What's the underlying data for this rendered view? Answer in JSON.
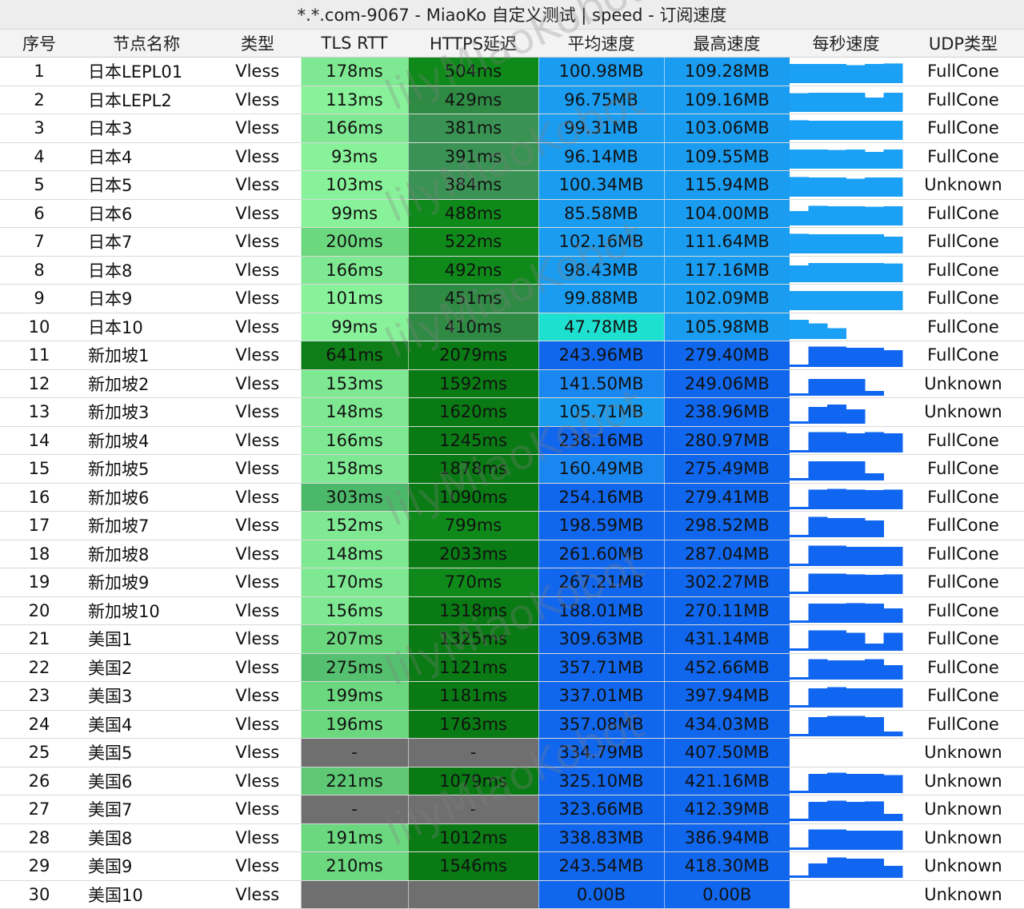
{
  "title": "*.*.com-9067 - MiaoKo 自定义测试 | speed - 订阅速度",
  "watermark_text": "lilyMiaoKobot",
  "headers": [
    "序号",
    "节点名称",
    "类型",
    "TLS RTT",
    "HTTPS延迟",
    "平均速度",
    "最高速度",
    "每秒速度",
    "UDP类型"
  ],
  "rows": [
    {
      "id": "1",
      "name": "日本LEPL01",
      "type": "Vless",
      "rtt": "178ms",
      "https": "504ms",
      "avg": "100.98MB",
      "max": "109.28MB",
      "udp": "FullCone",
      "rtt_color": "#7ee892",
      "https_color": "#0f8a1a",
      "avg_color": "#1a9cf0",
      "max_color": "#1a9cf0",
      "spark_color": "#1aa0f4",
      "spark": [
        0.8,
        0.8,
        0.8,
        0.75,
        0.8,
        0.82
      ]
    },
    {
      "id": "2",
      "name": "日本LEPL2",
      "type": "Vless",
      "rtt": "113ms",
      "https": "429ms",
      "avg": "96.75MB",
      "max": "109.16MB",
      "udp": "FullCone",
      "rtt_color": "#88f29a",
      "https_color": "#2f8a44",
      "avg_color": "#1a9cf0",
      "max_color": "#1a9cf0",
      "spark_color": "#1aa0f4",
      "spark": [
        0.78,
        0.8,
        0.8,
        0.8,
        0.6,
        0.8
      ]
    },
    {
      "id": "3",
      "name": "日本3",
      "type": "Vless",
      "rtt": "166ms",
      "https": "381ms",
      "avg": "99.31MB",
      "max": "103.06MB",
      "udp": "FullCone",
      "rtt_color": "#7ee892",
      "https_color": "#3a9354",
      "avg_color": "#1a9cf0",
      "max_color": "#1a9cf0",
      "spark_color": "#1aa0f4",
      "spark": [
        0.82,
        0.8,
        0.8,
        0.8,
        0.8,
        0.8
      ]
    },
    {
      "id": "4",
      "name": "日本4",
      "type": "Vless",
      "rtt": "93ms",
      "https": "391ms",
      "avg": "96.14MB",
      "max": "109.55MB",
      "udp": "FullCone",
      "rtt_color": "#88f29a",
      "https_color": "#3a9354",
      "avg_color": "#1a9cf0",
      "max_color": "#1a9cf0",
      "spark_color": "#1aa0f4",
      "spark": [
        0.8,
        0.8,
        0.78,
        0.8,
        0.7,
        0.8
      ]
    },
    {
      "id": "5",
      "name": "日本5",
      "type": "Vless",
      "rtt": "103ms",
      "https": "384ms",
      "avg": "100.34MB",
      "max": "115.94MB",
      "udp": "Unknown",
      "rtt_color": "#88f29a",
      "https_color": "#3a9354",
      "avg_color": "#1a9cf0",
      "max_color": "#1a9cf0",
      "spark_color": "#1aa0f4",
      "spark": [
        0.82,
        0.8,
        0.8,
        0.75,
        0.8,
        0.8
      ]
    },
    {
      "id": "6",
      "name": "日本6",
      "type": "Vless",
      "rtt": "99ms",
      "https": "488ms",
      "avg": "85.58MB",
      "max": "104.00MB",
      "udp": "FullCone",
      "rtt_color": "#88f29a",
      "https_color": "#0f8a1a",
      "avg_color": "#1a9cf0",
      "max_color": "#1a9cf0",
      "spark_color": "#1aa0f4",
      "spark": [
        0.6,
        0.82,
        0.8,
        0.8,
        0.78,
        0.8
      ]
    },
    {
      "id": "7",
      "name": "日本7",
      "type": "Vless",
      "rtt": "200ms",
      "https": "522ms",
      "avg": "102.16MB",
      "max": "111.64MB",
      "udp": "FullCone",
      "rtt_color": "#6bd77f",
      "https_color": "#0f8a1a",
      "avg_color": "#1a9cf0",
      "max_color": "#1a9cf0",
      "spark_color": "#1aa0f4",
      "spark": [
        0.82,
        0.8,
        0.8,
        0.8,
        0.8,
        0.7
      ]
    },
    {
      "id": "8",
      "name": "日本8",
      "type": "Vless",
      "rtt": "166ms",
      "https": "492ms",
      "avg": "98.43MB",
      "max": "117.16MB",
      "udp": "FullCone",
      "rtt_color": "#7ee892",
      "https_color": "#0f8a1a",
      "avg_color": "#1a9cf0",
      "max_color": "#1a9cf0",
      "spark_color": "#1aa0f4",
      "spark": [
        0.7,
        0.8,
        0.8,
        0.8,
        0.8,
        0.78
      ]
    },
    {
      "id": "9",
      "name": "日本9",
      "type": "Vless",
      "rtt": "101ms",
      "https": "451ms",
      "avg": "99.88MB",
      "max": "102.09MB",
      "udp": "FullCone",
      "rtt_color": "#88f29a",
      "https_color": "#2f8a44",
      "avg_color": "#1a9cf0",
      "max_color": "#1a9cf0",
      "spark_color": "#1aa0f4",
      "spark": [
        0.8,
        0.8,
        0.8,
        0.8,
        0.8,
        0.8
      ]
    },
    {
      "id": "10",
      "name": "日本10",
      "type": "Vless",
      "rtt": "99ms",
      "https": "410ms",
      "avg": "47.78MB",
      "max": "105.98MB",
      "udp": "FullCone",
      "rtt_color": "#88f29a",
      "https_color": "#2f8a44",
      "avg_color": "#1ee0d0",
      "max_color": "#1a9cf0",
      "spark_color": "#1aa0f4",
      "spark": [
        0.8,
        0.65,
        0.45,
        0,
        0,
        0
      ]
    },
    {
      "id": "11",
      "name": "新加坡1",
      "type": "Vless",
      "rtt": "641ms",
      "https": "2079ms",
      "avg": "243.96MB",
      "max": "279.40MB",
      "udp": "FullCone",
      "rtt_color": "#0f7d18",
      "https_color": "#0a7a14",
      "avg_color": "#1066ec",
      "max_color": "#1066ec",
      "spark_color": "#1066f0",
      "spark": [
        0.1,
        0.85,
        0.85,
        0.8,
        0.8,
        0.7
      ]
    },
    {
      "id": "12",
      "name": "新加坡2",
      "type": "Vless",
      "rtt": "153ms",
      "https": "1592ms",
      "avg": "141.50MB",
      "max": "249.06MB",
      "udp": "Unknown",
      "rtt_color": "#7ee892",
      "https_color": "#0a7a14",
      "avg_color": "#1a86f0",
      "max_color": "#1066ec",
      "spark_color": "#1066f0",
      "spark": [
        0.1,
        0.7,
        0.7,
        0.7,
        0.2,
        0
      ]
    },
    {
      "id": "13",
      "name": "新加坡3",
      "type": "Vless",
      "rtt": "148ms",
      "https": "1620ms",
      "avg": "105.71MB",
      "max": "238.96MB",
      "udp": "Unknown",
      "rtt_color": "#7ee892",
      "https_color": "#0a7a14",
      "avg_color": "#1a9cf0",
      "max_color": "#1066ec",
      "spark_color": "#1066f0",
      "spark": [
        0.1,
        0.7,
        0.8,
        0.6,
        0,
        0
      ]
    },
    {
      "id": "14",
      "name": "新加坡4",
      "type": "Vless",
      "rtt": "166ms",
      "https": "1245ms",
      "avg": "238.16MB",
      "max": "280.97MB",
      "udp": "FullCone",
      "rtt_color": "#7ee892",
      "https_color": "#0a7a14",
      "avg_color": "#1066ec",
      "max_color": "#1066ec",
      "spark_color": "#1066f0",
      "spark": [
        0.1,
        0.85,
        0.85,
        0.8,
        0.85,
        0.8
      ]
    },
    {
      "id": "15",
      "name": "新加坡5",
      "type": "Vless",
      "rtt": "158ms",
      "https": "1878ms",
      "avg": "160.49MB",
      "max": "275.49MB",
      "udp": "FullCone",
      "rtt_color": "#7ee892",
      "https_color": "#0a7a14",
      "avg_color": "#1a86f0",
      "max_color": "#1066ec",
      "spark_color": "#1066f0",
      "spark": [
        0.1,
        0.8,
        0.8,
        0.8,
        0.3,
        0
      ]
    },
    {
      "id": "16",
      "name": "新加坡6",
      "type": "Vless",
      "rtt": "303ms",
      "https": "1090ms",
      "avg": "254.16MB",
      "max": "279.41MB",
      "udp": "FullCone",
      "rtt_color": "#4cb869",
      "https_color": "#0a7a14",
      "avg_color": "#1066ec",
      "max_color": "#1066ec",
      "spark_color": "#1066f0",
      "spark": [
        0.1,
        0.82,
        0.85,
        0.82,
        0.8,
        0.82
      ]
    },
    {
      "id": "17",
      "name": "新加坡7",
      "type": "Vless",
      "rtt": "152ms",
      "https": "799ms",
      "avg": "198.59MB",
      "max": "298.52MB",
      "udp": "FullCone",
      "rtt_color": "#7ee892",
      "https_color": "#0f8a1a",
      "avg_color": "#1066ec",
      "max_color": "#1066ec",
      "spark_color": "#1066f0",
      "spark": [
        0.1,
        0.85,
        0.8,
        0.8,
        0.7,
        0
      ]
    },
    {
      "id": "18",
      "name": "新加坡8",
      "type": "Vless",
      "rtt": "148ms",
      "https": "2033ms",
      "avg": "261.60MB",
      "max": "287.04MB",
      "udp": "FullCone",
      "rtt_color": "#7ee892",
      "https_color": "#0a7a14",
      "avg_color": "#1066ec",
      "max_color": "#1066ec",
      "spark_color": "#1066f0",
      "spark": [
        0.1,
        0.85,
        0.85,
        0.8,
        0.8,
        0.8
      ]
    },
    {
      "id": "19",
      "name": "新加坡9",
      "type": "Vless",
      "rtt": "170ms",
      "https": "770ms",
      "avg": "267.21MB",
      "max": "302.27MB",
      "udp": "FullCone",
      "rtt_color": "#7ee892",
      "https_color": "#0f8a1a",
      "avg_color": "#1066ec",
      "max_color": "#1066ec",
      "spark_color": "#1066f0",
      "spark": [
        0.1,
        0.85,
        0.85,
        0.82,
        0.8,
        0.82
      ]
    },
    {
      "id": "20",
      "name": "新加坡10",
      "type": "Vless",
      "rtt": "156ms",
      "https": "1318ms",
      "avg": "188.01MB",
      "max": "270.11MB",
      "udp": "FullCone",
      "rtt_color": "#7ee892",
      "https_color": "#0a7a14",
      "avg_color": "#1066ec",
      "max_color": "#1066ec",
      "spark_color": "#1066f0",
      "spark": [
        0.1,
        0.8,
        0.8,
        0.82,
        0.8,
        0.6
      ]
    },
    {
      "id": "21",
      "name": "美国1",
      "type": "Vless",
      "rtt": "207ms",
      "https": "1325ms",
      "avg": "309.63MB",
      "max": "431.14MB",
      "udp": "FullCone",
      "rtt_color": "#6bd77f",
      "https_color": "#0a7a14",
      "avg_color": "#1066ec",
      "max_color": "#1066ec",
      "spark_color": "#1066f0",
      "spark": [
        0.1,
        0.85,
        0.85,
        0.75,
        0.3,
        0.75
      ]
    },
    {
      "id": "22",
      "name": "美国2",
      "type": "Vless",
      "rtt": "275ms",
      "https": "1121ms",
      "avg": "357.71MB",
      "max": "452.66MB",
      "udp": "FullCone",
      "rtt_color": "#55c06f",
      "https_color": "#0a7a14",
      "avg_color": "#1066ec",
      "max_color": "#1066ec",
      "spark_color": "#1066f0",
      "spark": [
        0.1,
        0.85,
        0.8,
        0.8,
        0.85,
        0.6
      ]
    },
    {
      "id": "23",
      "name": "美国3",
      "type": "Vless",
      "rtt": "199ms",
      "https": "1181ms",
      "avg": "337.01MB",
      "max": "397.94MB",
      "udp": "FullCone",
      "rtt_color": "#6bd77f",
      "https_color": "#0a7a14",
      "avg_color": "#1066ec",
      "max_color": "#1066ec",
      "spark_color": "#1066f0",
      "spark": [
        0.1,
        0.8,
        0.85,
        0.8,
        0.8,
        0.8
      ]
    },
    {
      "id": "24",
      "name": "美国4",
      "type": "Vless",
      "rtt": "196ms",
      "https": "1763ms",
      "avg": "357.08MB",
      "max": "434.03MB",
      "udp": "FullCone",
      "rtt_color": "#6bd77f",
      "https_color": "#0a7a14",
      "avg_color": "#1066ec",
      "max_color": "#1066ec",
      "spark_color": "#1066f0",
      "spark": [
        0.1,
        0.8,
        0.85,
        0.85,
        0.8,
        0.2
      ]
    },
    {
      "id": "25",
      "name": "美国5",
      "type": "Vless",
      "rtt": "-",
      "https": "-",
      "avg": "334.79MB",
      "max": "407.50MB",
      "udp": "Unknown",
      "rtt_color": "#6f6f6f",
      "https_color": "#6f6f6f",
      "avg_color": "#1066ec",
      "max_color": "#1066ec",
      "spark_color": "#1066f0",
      "spark": [
        0,
        0,
        0,
        0,
        0,
        0
      ]
    },
    {
      "id": "26",
      "name": "美国6",
      "type": "Vless",
      "rtt": "221ms",
      "https": "1079ms",
      "avg": "325.10MB",
      "max": "421.16MB",
      "udp": "Unknown",
      "rtt_color": "#5ec874",
      "https_color": "#0a7a14",
      "avg_color": "#1066ec",
      "max_color": "#1066ec",
      "spark_color": "#1066f0",
      "spark": [
        0.1,
        0.8,
        0.85,
        0.8,
        0.8,
        0.75
      ]
    },
    {
      "id": "27",
      "name": "美国7",
      "type": "Vless",
      "rtt": "-",
      "https": "-",
      "avg": "323.66MB",
      "max": "412.39MB",
      "udp": "Unknown",
      "rtt_color": "#6f6f6f",
      "https_color": "#6f6f6f",
      "avg_color": "#1066ec",
      "max_color": "#1066ec",
      "spark_color": "#1066f0",
      "spark": [
        0.1,
        0.8,
        0.85,
        0.8,
        0.82,
        0.3
      ]
    },
    {
      "id": "28",
      "name": "美国8",
      "type": "Vless",
      "rtt": "191ms",
      "https": "1012ms",
      "avg": "338.83MB",
      "max": "386.94MB",
      "udp": "Unknown",
      "rtt_color": "#6bd77f",
      "https_color": "#0a7a14",
      "avg_color": "#1066ec",
      "max_color": "#1066ec",
      "spark_color": "#1066f0",
      "spark": [
        0.1,
        0.85,
        0.85,
        0.8,
        0.8,
        0.8
      ]
    },
    {
      "id": "29",
      "name": "美国9",
      "type": "Vless",
      "rtt": "210ms",
      "https": "1546ms",
      "avg": "243.54MB",
      "max": "418.30MB",
      "udp": "Unknown",
      "rtt_color": "#6bd77f",
      "https_color": "#0a7a14",
      "avg_color": "#1066ec",
      "max_color": "#1066ec",
      "spark_color": "#1066f0",
      "spark": [
        0.1,
        0.6,
        0.85,
        0.8,
        0.8,
        0.5
      ]
    },
    {
      "id": "30",
      "name": "美国10",
      "type": "Vless",
      "rtt": "",
      "https": "",
      "avg": "0.00B",
      "max": "0.00B",
      "udp": "Unknown",
      "rtt_color": "#6f6f6f",
      "https_color": "#6f6f6f",
      "avg_color": "#1066ec",
      "max_color": "#1066ec",
      "spark_color": "#1066f0",
      "spark": [
        0,
        0,
        0,
        0,
        0,
        0
      ]
    }
  ]
}
